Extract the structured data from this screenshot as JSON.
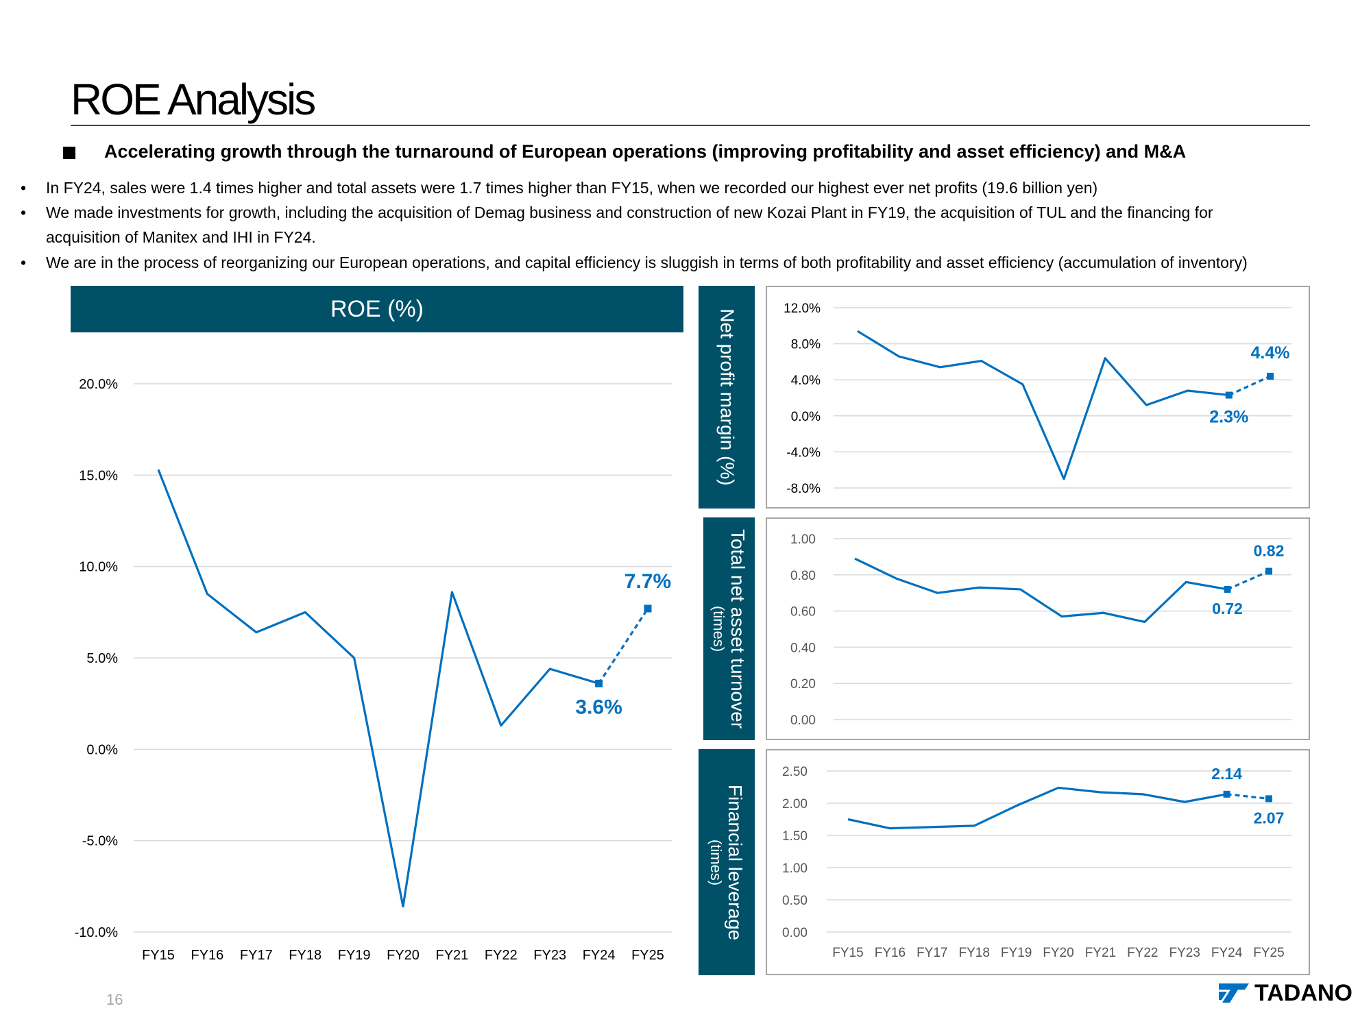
{
  "page": {
    "title": "ROE Analysis",
    "headline": "Accelerating growth through the turnaround of European operations (improving profitability and asset efficiency) and M&A",
    "bullets": [
      {
        "line1": "In FY24, sales were 1.4 times higher and total assets were 1.7 times higher than FY15, when we recorded our highest ever net profits (19.6 billion yen)",
        "line2": ""
      },
      {
        "line1": "We made investments for growth, including the acquisition of Demag business and construction of new Kozai Plant in FY19, the acquisition of TUL and the financing for",
        "line2": "acquisition of Manitex and IHI in FY24."
      },
      {
        "line1": "We are in the process of reorganizing our European operations, and capital efficiency is sluggish in terms of both profitability and asset efficiency (accumulation of inventory)",
        "line2": ""
      }
    ],
    "bullet_glyph": "•",
    "page_number": "16",
    "logo_text": "TADANO",
    "colors": {
      "banner": "#005068",
      "line": "#0070c0",
      "title_rule": "#1f4e79"
    }
  },
  "chart_data": [
    {
      "type": "line",
      "title": "ROE (%)",
      "categories": [
        "FY15",
        "FY16",
        "FY17",
        "FY18",
        "FY19",
        "FY20",
        "FY21",
        "FY22",
        "FY23",
        "FY24",
        "FY25"
      ],
      "series": [
        {
          "values": [
            15.3,
            8.5,
            6.4,
            7.5,
            5.0,
            -8.6,
            8.6,
            1.3,
            4.4,
            3.6,
            7.7
          ]
        }
      ],
      "forecast_from_index": 9,
      "ylim": [
        -10,
        20
      ],
      "yticks": [
        -10,
        -5,
        0,
        5,
        10,
        15,
        20
      ],
      "ytick_labels": [
        "-10.0%",
        "-5.0%",
        "0.0%",
        "5.0%",
        "10.0%",
        "15.0%",
        "20.0%"
      ],
      "annotations": [
        {
          "index": 9,
          "text": "3.6%",
          "position": "below"
        },
        {
          "index": 10,
          "text": "7.7%",
          "position": "above"
        }
      ],
      "grid": true,
      "show_xticks": true
    },
    {
      "type": "line",
      "title": "Net profit margin (%)",
      "categories": [
        "FY15",
        "FY16",
        "FY17",
        "FY18",
        "FY19",
        "FY20",
        "FY21",
        "FY22",
        "FY23",
        "FY24",
        "FY25"
      ],
      "series": [
        {
          "values": [
            9.4,
            6.6,
            5.4,
            6.1,
            3.5,
            -7.0,
            6.4,
            1.2,
            2.8,
            2.3,
            4.4
          ]
        }
      ],
      "forecast_from_index": 9,
      "ylim": [
        -8,
        12
      ],
      "yticks": [
        -8,
        -4,
        0,
        4,
        8,
        12
      ],
      "ytick_labels": [
        "-8.0%",
        "-4.0%",
        "0.0%",
        "4.0%",
        "8.0%",
        "12.0%"
      ],
      "annotations": [
        {
          "index": 9,
          "text": "2.3%",
          "position": "below"
        },
        {
          "index": 10,
          "text": "4.4%",
          "position": "above"
        }
      ],
      "grid": true,
      "show_xticks": false
    },
    {
      "type": "line",
      "title": "Total net asset turnover",
      "subtitle": "(times)",
      "categories": [
        "FY15",
        "FY16",
        "FY17",
        "FY18",
        "FY19",
        "FY20",
        "FY21",
        "FY22",
        "FY23",
        "FY24",
        "FY25"
      ],
      "series": [
        {
          "values": [
            0.89,
            0.78,
            0.7,
            0.73,
            0.72,
            0.57,
            0.59,
            0.54,
            0.76,
            0.72,
            0.82
          ]
        }
      ],
      "forecast_from_index": 9,
      "ylim": [
        0,
        1
      ],
      "yticks": [
        0,
        0.2,
        0.4,
        0.6,
        0.8,
        1.0
      ],
      "ytick_labels": [
        "0.00",
        "0.20",
        "0.40",
        "0.60",
        "0.80",
        "1.00"
      ],
      "annotations": [
        {
          "index": 9,
          "text": "0.72",
          "position": "below"
        },
        {
          "index": 10,
          "text": "0.82",
          "position": "above"
        }
      ],
      "grid": true,
      "show_xticks": false
    },
    {
      "type": "line",
      "title": "Financial leverage",
      "subtitle": "(times)",
      "categories": [
        "FY15",
        "FY16",
        "FY17",
        "FY18",
        "FY19",
        "FY20",
        "FY21",
        "FY22",
        "FY23",
        "FY24",
        "FY25"
      ],
      "series": [
        {
          "values": [
            1.75,
            1.61,
            1.63,
            1.65,
            1.96,
            2.24,
            2.17,
            2.14,
            2.02,
            2.14,
            2.07
          ]
        }
      ],
      "forecast_from_index": 9,
      "ylim": [
        0,
        2.5
      ],
      "yticks": [
        0,
        0.5,
        1.0,
        1.5,
        2.0,
        2.5
      ],
      "ytick_labels": [
        "0.00",
        "0.50",
        "1.00",
        "1.50",
        "2.00",
        "2.50"
      ],
      "annotations": [
        {
          "index": 9,
          "text": "2.14",
          "position": "above"
        },
        {
          "index": 10,
          "text": "2.07",
          "position": "below"
        }
      ],
      "grid": true,
      "show_xticks": true
    }
  ]
}
